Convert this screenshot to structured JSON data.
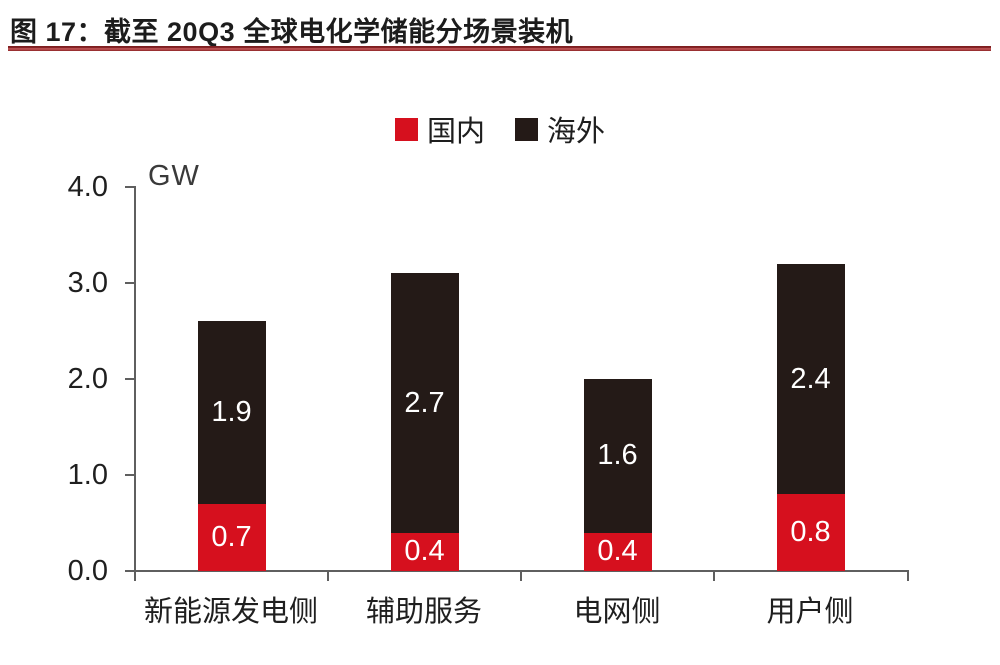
{
  "header": {
    "title": "图 17：截至 20Q3 全球电化学储能分场景装机"
  },
  "chart_data": {
    "type": "bar",
    "stacked": true,
    "title": "图 17：截至 20Q3 全球电化学储能分场景装机",
    "categories": [
      "新能源发电侧",
      "辅助服务",
      "电网侧",
      "用户侧"
    ],
    "series": [
      {
        "name": "国内",
        "color": "#d6101e",
        "values": [
          0.7,
          0.4,
          0.4,
          0.8
        ]
      },
      {
        "name": "海外",
        "color": "#241a17",
        "values": [
          1.9,
          2.7,
          1.6,
          2.4
        ]
      }
    ],
    "totals": [
      2.6,
      3.1,
      2.0,
      3.2
    ],
    "xlabel": "",
    "ylabel": "GW",
    "ylim": [
      0,
      4
    ],
    "yticks": [
      "4.0",
      "3.0",
      "2.0",
      "1.0",
      "0.0"
    ],
    "grid": false,
    "legend_position": "top-center",
    "value_label_color": "#ffffff",
    "axis_color": "#5f5f5f",
    "title_rule_color": "#8d2426"
  }
}
